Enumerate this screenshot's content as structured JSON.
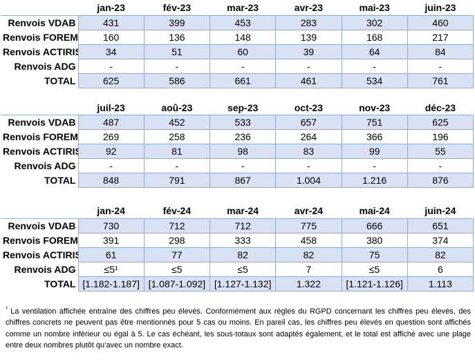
{
  "colors": {
    "cell_fill": "#D9E1F2",
    "cell_border": "#8EA9DB",
    "text": "#000000"
  },
  "tables": [
    {
      "months": [
        "jan-23",
        "fév-23",
        "mar-23",
        "avr-23",
        "mai-23",
        "juin-23"
      ],
      "rows": [
        {
          "label": "Renvois VDAB",
          "values": [
            "431",
            "399",
            "453",
            "283",
            "302",
            "460"
          ]
        },
        {
          "label": "Renvois FOREM",
          "values": [
            "160",
            "136",
            "148",
            "139",
            "168",
            "217"
          ]
        },
        {
          "label": "Renvois ACTIRIS",
          "values": [
            "34",
            "51",
            "60",
            "39",
            "64",
            "84"
          ]
        },
        {
          "label": "Renvois ADG",
          "values": [
            "-",
            "-",
            "-",
            "-",
            "-",
            "-"
          ]
        },
        {
          "label": "TOTAL",
          "values": [
            "625",
            "586",
            "661",
            "461",
            "534",
            "761"
          ]
        }
      ]
    },
    {
      "months": [
        "juil-23",
        "aoû-23",
        "sep-23",
        "oct-23",
        "nov-23",
        "déc-23"
      ],
      "rows": [
        {
          "label": "Renvois VDAB",
          "values": [
            "487",
            "452",
            "533",
            "657",
            "751",
            "625"
          ]
        },
        {
          "label": "Renvois FOREM",
          "values": [
            "269",
            "258",
            "236",
            "264",
            "366",
            "196"
          ]
        },
        {
          "label": "Renvois ACTIRIS",
          "values": [
            "92",
            "81",
            "98",
            "83",
            "99",
            "55"
          ]
        },
        {
          "label": "Renvois ADG",
          "values": [
            "-",
            "-",
            "-",
            "-",
            "-",
            "-"
          ]
        },
        {
          "label": "TOTAL",
          "values": [
            "848",
            "791",
            "867",
            "1.004",
            "1.216",
            "876"
          ]
        }
      ]
    },
    {
      "months": [
        "jan-24",
        "fév-24",
        "mar-24",
        "avr-24",
        "mai-24",
        "juin-24"
      ],
      "rows": [
        {
          "label": "Renvois VDAB",
          "values": [
            "730",
            "712",
            "712",
            "775",
            "666",
            "651"
          ]
        },
        {
          "label": "Renvois FOREM",
          "values": [
            "391",
            "298",
            "333",
            "458",
            "380",
            "374"
          ]
        },
        {
          "label": "Renvois ACTIRIS",
          "values": [
            "61",
            "77",
            "82",
            "82",
            "75",
            "82"
          ]
        },
        {
          "label": "Renvois ADG",
          "values": [
            "≤5¹",
            "≤5",
            "≤5",
            "7",
            "≤5",
            "6"
          ]
        },
        {
          "label": "TOTAL",
          "values": [
            "[1.182-1.187]",
            "[1.087-1.092]",
            "[1.127-1.132]",
            "1.322",
            "[1.121-1.126]",
            "1.113"
          ]
        }
      ]
    }
  ],
  "footnote": {
    "marker": "³",
    "text": "La ventilation affichée entraîne des chiffres peu élevés. Conformément aux règles du RGPD concernant les chiffres peu élevés, des chiffres concrets ne peuvent pas être mentionnés pour 5 cas ou moins. En pareil cas, les chiffres peu élevés en question sont affichés comme un nombre inférieur ou égal à 5. Le cas échéant, les sous-totaux sont adaptés également, et le total est affiché avec une plage entre deux nombres plutôt qu’avec un nombre exact."
  }
}
